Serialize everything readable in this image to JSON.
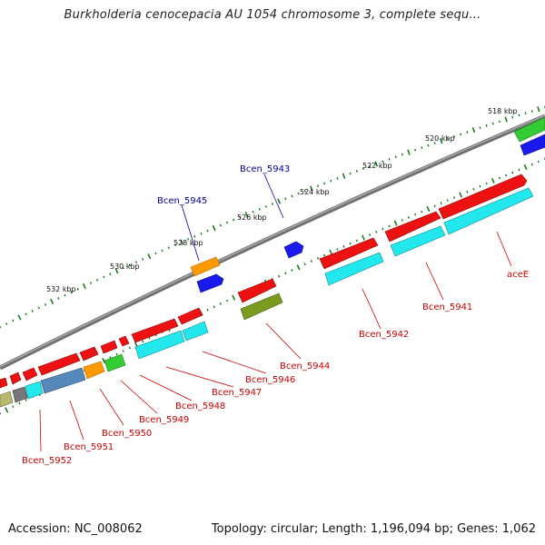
{
  "title": "Burkholderia cenocepacia AU 1054 chromosome 3, complete sequ...",
  "accession": "Accession: NC_008062",
  "summary": "Topology: circular; Length: 1,196,094 bp; Genes: 1,062",
  "scale_labels": [
    "518 kbp",
    "520 kbp",
    "522 kbp",
    "524 kbp",
    "526 kbp",
    "528 kbp",
    "530 kbp",
    "532 kbp"
  ],
  "gene_labels": {
    "bcen_5945": "Bcen_5945",
    "bcen_5943": "Bcen_5943",
    "acee": "aceE",
    "bcen_5941": "Bcen_5941",
    "bcen_5942": "Bcen_5942",
    "bcen_5944": "Bcen_5944",
    "bcen_5946": "Bcen_5946",
    "bcen_5947": "Bcen_5947",
    "bcen_5948": "Bcen_5948",
    "bcen_5949": "Bcen_5949",
    "bcen_5950": "Bcen_5950",
    "bcen_5951": "Bcen_5951",
    "bcen_5952": "Bcen_5952"
  },
  "colors": {
    "backbone": "#808080",
    "tick": "#1a7a1a",
    "label_red": "#cc0000",
    "label_blue": "#000099",
    "cds_red": "#ee1111",
    "cds_cyan": "#22e8ee",
    "cds_blue": "#1a1aee",
    "cds_orange": "#ff9900",
    "cds_green": "#33cc33",
    "cds_olive": "#7a9a20",
    "cds_steel": "#5588bb",
    "cds_gray": "#777777",
    "cds_khaki": "#b8b870"
  }
}
